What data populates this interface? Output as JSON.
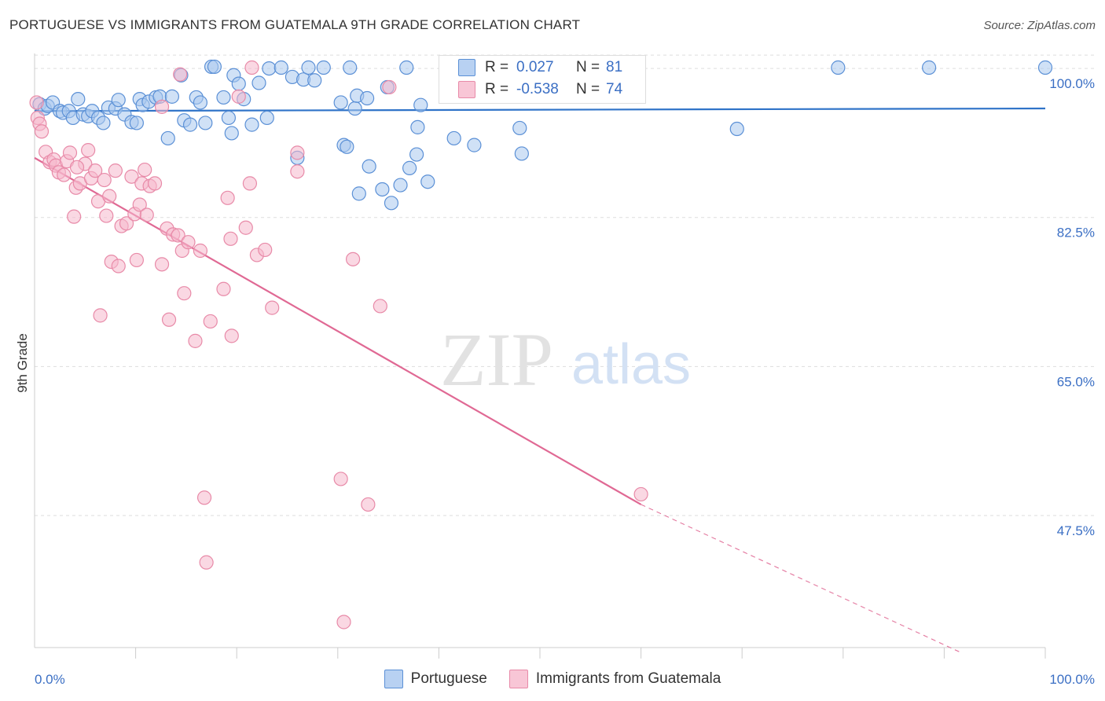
{
  "header": {
    "title": "PORTUGUESE VS IMMIGRANTS FROM GUATEMALA 9TH GRADE CORRELATION CHART",
    "source": "Source: ZipAtlas.com"
  },
  "watermark": {
    "zip": "ZIP",
    "atlas": "atlas"
  },
  "legend": {
    "rows": [
      {
        "r_label": "R =",
        "r_value": "0.027",
        "n_label": "N =",
        "n_value": "81"
      },
      {
        "r_label": "R =",
        "r_value": "-0.538",
        "n_label": "N =",
        "n_value": "74"
      }
    ]
  },
  "colors": {
    "blue_fill": "#a9c8ef",
    "blue_stroke": "#5b90d6",
    "blue_line": "#2f73c8",
    "pink_fill": "#f6b8cc",
    "pink_stroke": "#e88aa8",
    "pink_line": "#e06994",
    "tick_label": "#3b6fc4",
    "grid": "#dddddd"
  },
  "chart_data": {
    "type": "scatter",
    "title": "PORTUGUESE VS IMMIGRANTS FROM GUATEMALA 9TH GRADE CORRELATION CHART",
    "xlabel": "",
    "ylabel": "9th Grade",
    "xlim": [
      0,
      100
    ],
    "ylim": [
      32.0,
      102.5
    ],
    "x_tick_labels": [
      {
        "value": 0,
        "label": "0.0%"
      },
      {
        "value": 100,
        "label": "100.0%"
      }
    ],
    "y_ticks": [
      {
        "value": 100,
        "label": "100.0%"
      },
      {
        "value": 82.5,
        "label": "82.5%"
      },
      {
        "value": 65,
        "label": "65.0%"
      },
      {
        "value": 47.5,
        "label": "47.5%"
      }
    ],
    "grid": true,
    "legend_position": "top-center",
    "series": [
      {
        "name": "Portuguese",
        "color": "#5b90d6",
        "r": 0.027,
        "n": 81,
        "trend": {
          "x": [
            0,
            100
          ],
          "y": [
            95.0,
            95.3
          ]
        },
        "points": [
          [
            0.5,
            95.8
          ],
          [
            1.0,
            95.3
          ],
          [
            1.3,
            95.6
          ],
          [
            1.8,
            96.0
          ],
          [
            2.5,
            95.0
          ],
          [
            2.8,
            94.8
          ],
          [
            3.4,
            95.0
          ],
          [
            3.8,
            94.2
          ],
          [
            4.3,
            96.4
          ],
          [
            4.8,
            94.6
          ],
          [
            5.3,
            94.4
          ],
          [
            5.7,
            95.0
          ],
          [
            6.3,
            94.2
          ],
          [
            6.8,
            93.6
          ],
          [
            7.3,
            95.4
          ],
          [
            8.0,
            95.3
          ],
          [
            8.3,
            96.3
          ],
          [
            8.9,
            94.6
          ],
          [
            9.6,
            93.7
          ],
          [
            10.1,
            93.6
          ],
          [
            10.4,
            96.4
          ],
          [
            10.7,
            95.7
          ],
          [
            11.3,
            96.1
          ],
          [
            12.0,
            96.6
          ],
          [
            12.4,
            96.7
          ],
          [
            13.2,
            91.8
          ],
          [
            13.6,
            96.7
          ],
          [
            14.5,
            99.2
          ],
          [
            14.8,
            93.9
          ],
          [
            15.4,
            93.4
          ],
          [
            16.0,
            96.6
          ],
          [
            16.4,
            96.0
          ],
          [
            16.9,
            93.6
          ],
          [
            17.5,
            100.2
          ],
          [
            17.8,
            100.2
          ],
          [
            18.7,
            96.6
          ],
          [
            19.2,
            94.2
          ],
          [
            19.5,
            92.4
          ],
          [
            19.7,
            99.2
          ],
          [
            20.2,
            98.2
          ],
          [
            20.7,
            96.4
          ],
          [
            21.5,
            93.4
          ],
          [
            22.2,
            98.3
          ],
          [
            23.0,
            94.2
          ],
          [
            23.2,
            100.0
          ],
          [
            24.4,
            100.1
          ],
          [
            25.5,
            99.0
          ],
          [
            26.0,
            89.5
          ],
          [
            26.6,
            98.7
          ],
          [
            27.1,
            100.1
          ],
          [
            27.7,
            98.6
          ],
          [
            28.6,
            100.1
          ],
          [
            30.3,
            96.0
          ],
          [
            30.6,
            91.0
          ],
          [
            30.9,
            90.8
          ],
          [
            31.2,
            100.1
          ],
          [
            31.7,
            95.3
          ],
          [
            31.9,
            96.8
          ],
          [
            32.1,
            85.3
          ],
          [
            32.9,
            96.5
          ],
          [
            33.1,
            88.5
          ],
          [
            34.4,
            85.8
          ],
          [
            34.9,
            97.8
          ],
          [
            35.3,
            84.2
          ],
          [
            36.2,
            86.3
          ],
          [
            36.8,
            100.1
          ],
          [
            37.1,
            88.3
          ],
          [
            37.8,
            89.9
          ],
          [
            37.9,
            93.1
          ],
          [
            38.2,
            95.7
          ],
          [
            38.9,
            86.7
          ],
          [
            41.5,
            91.8
          ],
          [
            43.5,
            91.0
          ],
          [
            48.0,
            93.0
          ],
          [
            48.2,
            90.0
          ],
          [
            50.0,
            100.1
          ],
          [
            57.0,
            100.1
          ],
          [
            69.5,
            92.9
          ],
          [
            79.5,
            100.1
          ],
          [
            88.5,
            100.1
          ],
          [
            100.0,
            100.1
          ]
        ]
      },
      {
        "name": "Immigrants from Guatemala",
        "color": "#e88aa8",
        "r": -0.538,
        "n": 74,
        "trend": {
          "x": [
            0,
            60
          ],
          "y": [
            89.5,
            48.8
          ]
        },
        "trend_dashed": {
          "x": [
            60,
            91.5
          ],
          "y": [
            48.8,
            31.5
          ]
        },
        "points": [
          [
            0.2,
            96.0
          ],
          [
            0.3,
            94.2
          ],
          [
            0.5,
            93.5
          ],
          [
            0.7,
            92.6
          ],
          [
            1.1,
            90.2
          ],
          [
            1.5,
            89.0
          ],
          [
            1.9,
            89.3
          ],
          [
            2.1,
            88.6
          ],
          [
            2.4,
            87.8
          ],
          [
            2.9,
            87.5
          ],
          [
            3.2,
            89.1
          ],
          [
            3.5,
            90.1
          ],
          [
            3.9,
            82.6
          ],
          [
            4.1,
            86.0
          ],
          [
            4.5,
            86.5
          ],
          [
            5.0,
            88.8
          ],
          [
            5.3,
            90.4
          ],
          [
            5.6,
            87.1
          ],
          [
            6.0,
            88.0
          ],
          [
            6.3,
            84.4
          ],
          [
            6.5,
            71.0
          ],
          [
            6.9,
            86.9
          ],
          [
            7.1,
            82.7
          ],
          [
            7.4,
            85.0
          ],
          [
            7.6,
            77.3
          ],
          [
            8.0,
            88.0
          ],
          [
            8.3,
            76.8
          ],
          [
            8.6,
            81.5
          ],
          [
            9.1,
            81.8
          ],
          [
            9.6,
            87.3
          ],
          [
            9.9,
            82.9
          ],
          [
            10.1,
            77.5
          ],
          [
            10.4,
            84.0
          ],
          [
            10.6,
            86.5
          ],
          [
            10.9,
            88.1
          ],
          [
            11.1,
            82.8
          ],
          [
            11.4,
            86.2
          ],
          [
            11.9,
            86.5
          ],
          [
            12.6,
            77.0
          ],
          [
            13.1,
            81.2
          ],
          [
            13.3,
            70.5
          ],
          [
            13.7,
            80.5
          ],
          [
            14.2,
            80.4
          ],
          [
            14.6,
            78.6
          ],
          [
            14.8,
            73.6
          ],
          [
            15.2,
            79.6
          ],
          [
            15.9,
            68.0
          ],
          [
            16.4,
            78.6
          ],
          [
            16.8,
            49.6
          ],
          [
            17.0,
            42.0
          ],
          [
            17.4,
            70.3
          ],
          [
            18.7,
            74.1
          ],
          [
            19.1,
            84.8
          ],
          [
            19.4,
            80.0
          ],
          [
            19.5,
            68.6
          ],
          [
            20.2,
            96.7
          ],
          [
            20.9,
            81.3
          ],
          [
            21.3,
            86.5
          ],
          [
            22.0,
            78.1
          ],
          [
            22.8,
            78.7
          ],
          [
            23.5,
            71.9
          ],
          [
            26.0,
            90.1
          ],
          [
            30.3,
            51.8
          ],
          [
            30.6,
            35.0
          ],
          [
            31.5,
            77.6
          ],
          [
            33.0,
            48.8
          ],
          [
            34.2,
            72.1
          ],
          [
            35.1,
            97.8
          ],
          [
            60.0,
            50.0
          ],
          [
            21.5,
            100.1
          ],
          [
            14.4,
            99.3
          ],
          [
            4.2,
            88.4
          ],
          [
            12.6,
            95.5
          ],
          [
            26.0,
            87.9
          ]
        ]
      }
    ]
  }
}
